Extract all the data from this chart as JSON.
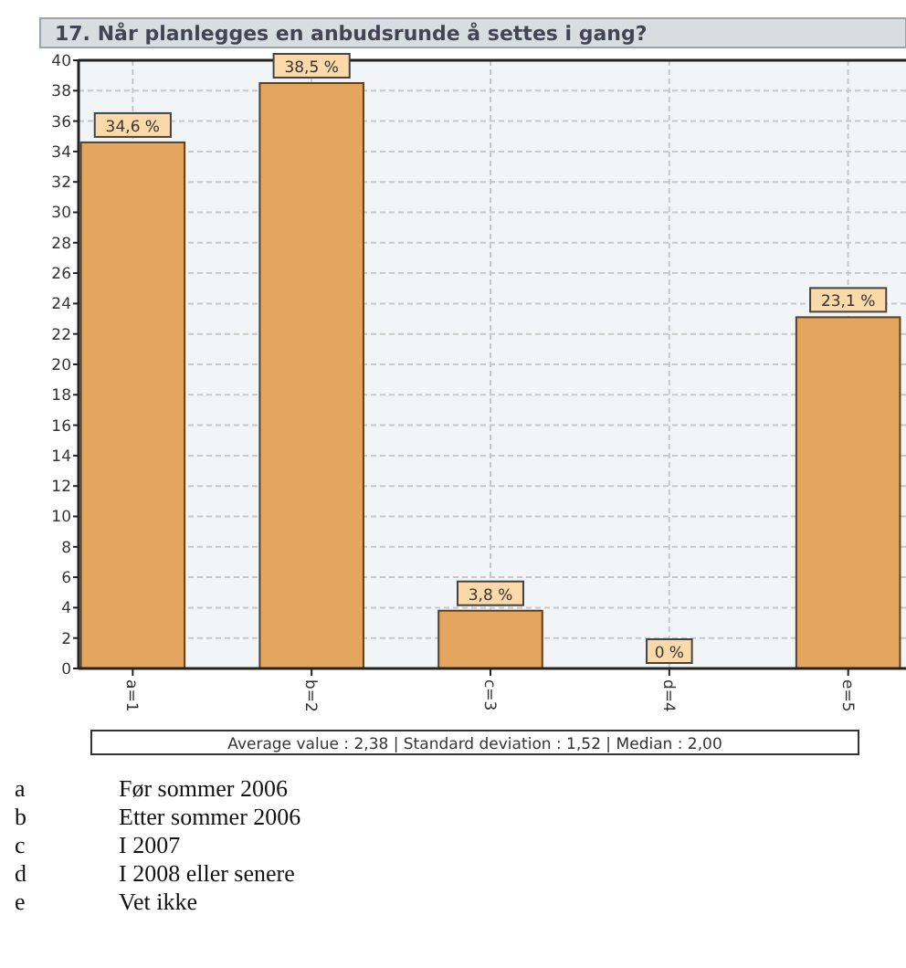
{
  "chart_data": {
    "type": "bar",
    "title": "17. Når planlegges en anbudsrunde å settes i gang?",
    "categories": [
      "a=1",
      "b=2",
      "c=3",
      "d=4",
      "e=5"
    ],
    "values": [
      34.6,
      38.5,
      3.8,
      0,
      23.1
    ],
    "value_labels": [
      "34,6 %",
      "38,5 %",
      "3,8 %",
      "0 %",
      "23,1 %"
    ],
    "color": "#e4a55e",
    "ylim": [
      0,
      40
    ],
    "yticks": [
      0,
      2,
      4,
      6,
      8,
      10,
      12,
      14,
      16,
      18,
      20,
      22,
      24,
      26,
      28,
      30,
      32,
      34,
      36,
      38,
      40
    ],
    "grid": true,
    "annotations": [
      "Average value : 2,38 | Standard deviation : 1,52 | Median : 2,00",
      "a Før sommer 2006",
      "b Etter sommer 2006",
      "c I 2007",
      "d I 2008 eller senere",
      "e Vet ikke"
    ]
  }
}
